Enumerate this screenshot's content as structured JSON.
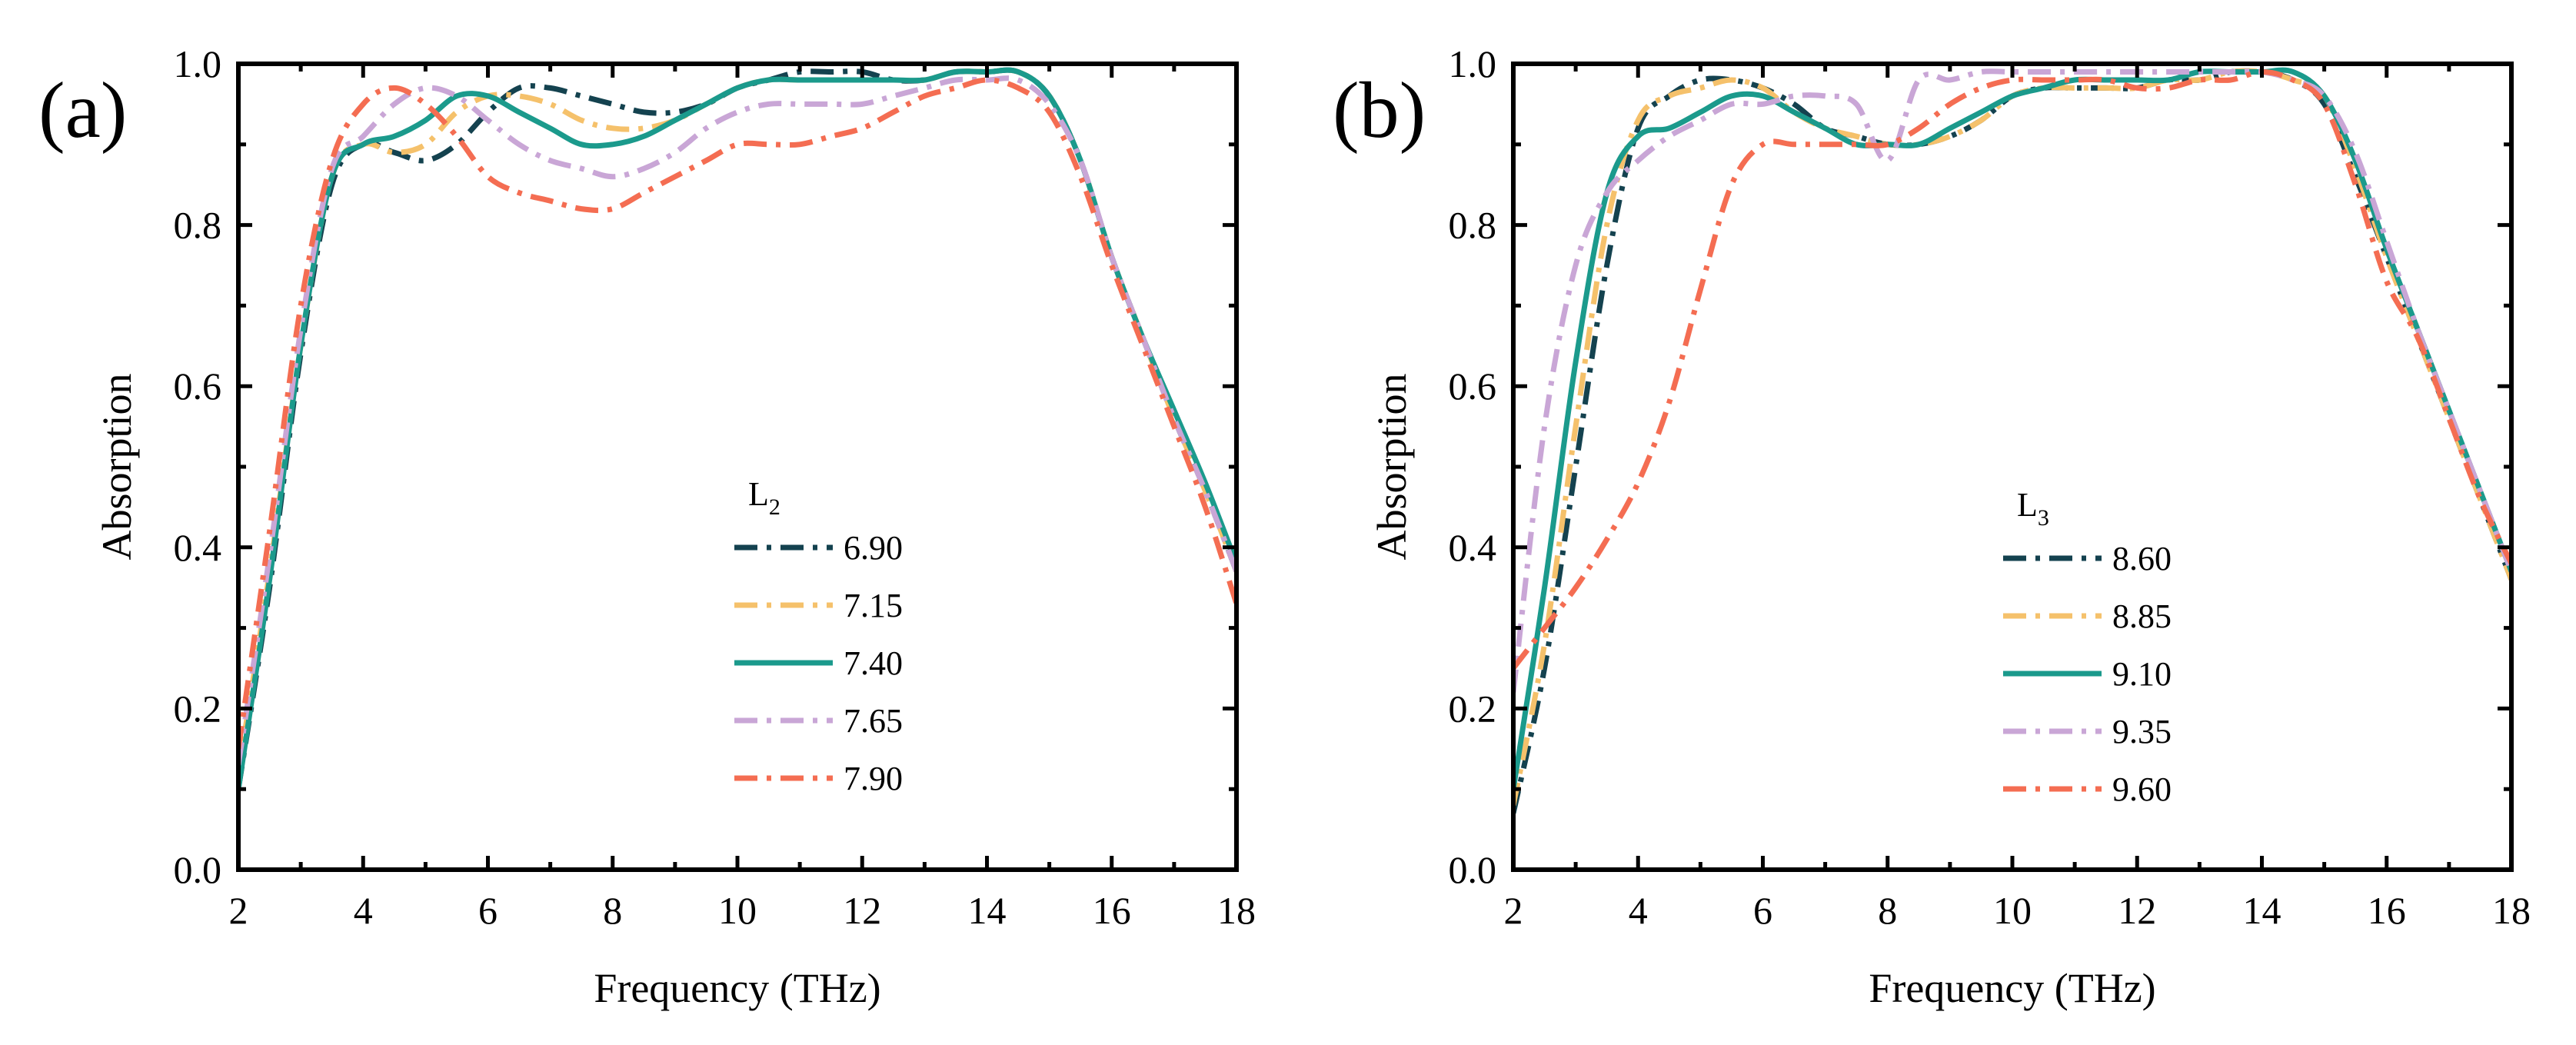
{
  "chart_data": [
    {
      "panel_label": "(a)",
      "type": "line",
      "xlabel": "Frequency (THz)",
      "ylabel": "Absorption",
      "xlim": [
        2,
        18
      ],
      "ylim": [
        0,
        1
      ],
      "xticks": [
        "2",
        "4",
        "6",
        "8",
        "10",
        "12",
        "14",
        "16",
        "18"
      ],
      "yticks": [
        "0.0",
        "0.2",
        "0.4",
        "0.6",
        "0.8",
        "1.0"
      ],
      "grid": false,
      "legend_title": {
        "main": "L",
        "sub": "2"
      },
      "legend_position": "center-right",
      "series": [
        {
          "name": "6.90",
          "color": "#14424f",
          "dash": "dashdot",
          "x": [
            2,
            2.5,
            3,
            3.5,
            4,
            4.5,
            5,
            5.5,
            6,
            6.5,
            7,
            7.5,
            8,
            8.5,
            9,
            9.5,
            10,
            10.5,
            11,
            11.5,
            12,
            12.5,
            13,
            13.5,
            14,
            14.5,
            15,
            15.5,
            16,
            16.5,
            17,
            17.5,
            18
          ],
          "y": [
            0.1,
            0.35,
            0.64,
            0.85,
            0.9,
            0.89,
            0.88,
            0.9,
            0.94,
            0.97,
            0.97,
            0.96,
            0.95,
            0.94,
            0.94,
            0.95,
            0.97,
            0.98,
            0.99,
            0.99,
            0.99,
            0.98,
            0.98,
            0.99,
            0.99,
            0.99,
            0.96,
            0.88,
            0.76,
            0.66,
            0.56,
            0.47,
            0.37
          ]
        },
        {
          "name": "7.15",
          "color": "#f5c16b",
          "dash": "dashdot",
          "x": [
            2,
            2.5,
            3,
            3.5,
            4,
            4.5,
            5,
            5.5,
            6,
            6.5,
            7,
            7.5,
            8,
            8.5,
            9,
            9.5,
            10,
            10.5,
            11,
            11.5,
            12,
            12.5,
            13,
            13.5,
            14,
            14.5,
            15,
            15.5,
            16,
            16.5,
            17,
            17.5,
            18
          ],
          "y": [
            0.12,
            0.37,
            0.65,
            0.86,
            0.9,
            0.89,
            0.9,
            0.94,
            0.96,
            0.96,
            0.95,
            0.93,
            0.92,
            0.92,
            0.93,
            0.95,
            0.97,
            0.98,
            0.98,
            0.98,
            0.98,
            0.98,
            0.98,
            0.99,
            0.99,
            0.99,
            0.96,
            0.88,
            0.76,
            0.66,
            0.56,
            0.47,
            0.37
          ]
        },
        {
          "name": "7.40",
          "color": "#1b9a8c",
          "dash": "solid",
          "x": [
            2,
            2.5,
            3,
            3.5,
            4,
            4.5,
            5,
            5.5,
            6,
            6.5,
            7,
            7.5,
            8,
            8.5,
            9,
            9.5,
            10,
            10.5,
            11,
            11.5,
            12,
            12.5,
            13,
            13.5,
            14,
            14.5,
            15,
            15.5,
            16,
            16.5,
            17,
            17.5,
            18
          ],
          "y": [
            0.1,
            0.36,
            0.65,
            0.86,
            0.9,
            0.91,
            0.93,
            0.96,
            0.96,
            0.94,
            0.92,
            0.9,
            0.9,
            0.91,
            0.93,
            0.95,
            0.97,
            0.98,
            0.98,
            0.98,
            0.98,
            0.98,
            0.98,
            0.99,
            0.99,
            0.99,
            0.96,
            0.88,
            0.76,
            0.66,
            0.57,
            0.48,
            0.38
          ]
        },
        {
          "name": "7.65",
          "color": "#c9a6d6",
          "dash": "dashdot",
          "x": [
            2,
            2.5,
            3,
            3.5,
            4,
            4.5,
            5,
            5.5,
            6,
            6.5,
            7,
            7.5,
            8,
            8.5,
            9,
            9.5,
            10,
            10.5,
            11,
            11.5,
            12,
            12.5,
            13,
            13.5,
            14,
            14.5,
            15,
            15.5,
            16,
            16.5,
            17,
            17.5,
            18
          ],
          "y": [
            0.13,
            0.39,
            0.67,
            0.87,
            0.91,
            0.95,
            0.97,
            0.96,
            0.93,
            0.9,
            0.88,
            0.87,
            0.86,
            0.87,
            0.89,
            0.92,
            0.94,
            0.95,
            0.95,
            0.95,
            0.95,
            0.96,
            0.97,
            0.98,
            0.98,
            0.98,
            0.95,
            0.88,
            0.76,
            0.66,
            0.56,
            0.47,
            0.37
          ]
        },
        {
          "name": "7.90",
          "color": "#f46d52",
          "dash": "dashdot",
          "x": [
            2,
            2.5,
            3,
            3.5,
            4,
            4.5,
            5,
            5.5,
            6,
            6.5,
            7,
            7.5,
            8,
            8.5,
            9,
            9.5,
            10,
            10.5,
            11,
            11.5,
            12,
            12.5,
            13,
            13.5,
            14,
            14.5,
            15,
            15.5,
            16,
            16.5,
            17,
            17.5,
            18
          ],
          "y": [
            0.15,
            0.42,
            0.7,
            0.88,
            0.95,
            0.97,
            0.95,
            0.91,
            0.86,
            0.84,
            0.83,
            0.82,
            0.82,
            0.84,
            0.86,
            0.88,
            0.9,
            0.9,
            0.9,
            0.91,
            0.92,
            0.94,
            0.96,
            0.97,
            0.98,
            0.97,
            0.94,
            0.86,
            0.75,
            0.65,
            0.55,
            0.45,
            0.33
          ]
        }
      ]
    },
    {
      "panel_label": "(b)",
      "type": "line",
      "xlabel": "Frequency (THz)",
      "ylabel": "Absorption",
      "xlim": [
        2,
        18
      ],
      "ylim": [
        0,
        1
      ],
      "xticks": [
        "2",
        "4",
        "6",
        "8",
        "10",
        "12",
        "14",
        "16",
        "18"
      ],
      "yticks": [
        "0.0",
        "0.2",
        "0.4",
        "0.6",
        "0.8",
        "1.0"
      ],
      "grid": false,
      "legend_title": {
        "main": "L",
        "sub": "3"
      },
      "legend_position": "center-right",
      "series": [
        {
          "name": "8.60",
          "color": "#14424f",
          "dash": "dashdot",
          "x": [
            2,
            2.5,
            3,
            3.5,
            4,
            4.5,
            5,
            5.5,
            6,
            6.5,
            7,
            7.5,
            8,
            8.5,
            9,
            9.5,
            10,
            10.5,
            11,
            11.5,
            12,
            12.5,
            13,
            13.5,
            14,
            14.5,
            15,
            15.5,
            16,
            16.5,
            17,
            17.5,
            18
          ],
          "y": [
            0.07,
            0.25,
            0.5,
            0.75,
            0.92,
            0.96,
            0.98,
            0.98,
            0.97,
            0.95,
            0.92,
            0.91,
            0.9,
            0.9,
            0.91,
            0.93,
            0.96,
            0.97,
            0.97,
            0.97,
            0.97,
            0.98,
            0.98,
            0.99,
            0.99,
            0.98,
            0.95,
            0.86,
            0.76,
            0.66,
            0.56,
            0.46,
            0.36
          ]
        },
        {
          "name": "8.85",
          "color": "#f5c16b",
          "dash": "dashdot",
          "x": [
            2,
            2.5,
            3,
            3.5,
            4,
            4.5,
            5,
            5.5,
            6,
            6.5,
            7,
            7.5,
            8,
            8.5,
            9,
            9.5,
            10,
            10.5,
            11,
            11.5,
            12,
            12.5,
            13,
            13.5,
            14,
            14.5,
            15,
            15.5,
            16,
            16.5,
            17,
            17.5,
            18
          ],
          "y": [
            0.08,
            0.28,
            0.55,
            0.8,
            0.93,
            0.96,
            0.97,
            0.98,
            0.97,
            0.94,
            0.92,
            0.91,
            0.9,
            0.9,
            0.91,
            0.93,
            0.96,
            0.97,
            0.97,
            0.97,
            0.97,
            0.98,
            0.98,
            0.99,
            0.99,
            0.98,
            0.96,
            0.87,
            0.76,
            0.66,
            0.56,
            0.46,
            0.36
          ]
        },
        {
          "name": "9.10",
          "color": "#1b9a8c",
          "dash": "solid",
          "x": [
            2,
            2.5,
            3,
            3.5,
            4,
            4.5,
            5,
            5.5,
            6,
            6.5,
            7,
            7.5,
            8,
            8.5,
            9,
            9.5,
            10,
            10.5,
            11,
            11.5,
            12,
            12.5,
            13,
            13.5,
            14,
            14.5,
            15,
            15.5,
            16,
            16.5,
            17,
            17.5,
            18
          ],
          "y": [
            0.1,
            0.35,
            0.63,
            0.84,
            0.91,
            0.92,
            0.94,
            0.96,
            0.96,
            0.94,
            0.92,
            0.9,
            0.9,
            0.9,
            0.92,
            0.94,
            0.96,
            0.97,
            0.98,
            0.98,
            0.98,
            0.98,
            0.99,
            0.99,
            0.99,
            0.99,
            0.96,
            0.88,
            0.77,
            0.67,
            0.57,
            0.47,
            0.37
          ]
        },
        {
          "name": "9.35",
          "color": "#c9a6d6",
          "dash": "dashdot",
          "x": [
            2,
            2.5,
            3,
            3.5,
            4,
            4.5,
            5,
            5.5,
            6,
            6.5,
            7,
            7.5,
            8,
            8.5,
            9,
            9.5,
            10,
            10.5,
            11,
            11.5,
            12,
            12.5,
            13,
            13.5,
            14,
            14.5,
            15,
            15.5,
            16,
            16.5,
            17,
            17.5,
            18
          ],
          "y": [
            0.22,
            0.55,
            0.75,
            0.84,
            0.88,
            0.91,
            0.93,
            0.95,
            0.95,
            0.96,
            0.96,
            0.95,
            0.88,
            0.98,
            0.98,
            0.99,
            0.99,
            0.99,
            0.99,
            0.99,
            0.99,
            0.99,
            0.99,
            0.99,
            0.99,
            0.98,
            0.96,
            0.89,
            0.78,
            0.67,
            0.57,
            0.47,
            0.37
          ]
        },
        {
          "name": "9.60",
          "color": "#f46d52",
          "dash": "dashdot",
          "x": [
            2,
            2.5,
            3,
            3.5,
            4,
            4.5,
            5,
            5.5,
            6,
            6.5,
            7,
            7.5,
            8,
            8.5,
            9,
            9.5,
            10,
            10.5,
            11,
            11.5,
            12,
            12.5,
            13,
            13.5,
            14,
            14.5,
            15,
            15.5,
            16,
            16.5,
            17,
            17.5,
            18
          ],
          "y": [
            0.25,
            0.3,
            0.35,
            0.41,
            0.48,
            0.58,
            0.72,
            0.85,
            0.9,
            0.9,
            0.9,
            0.9,
            0.9,
            0.92,
            0.95,
            0.97,
            0.98,
            0.98,
            0.98,
            0.98,
            0.97,
            0.97,
            0.98,
            0.98,
            0.99,
            0.98,
            0.95,
            0.85,
            0.73,
            0.66,
            0.56,
            0.46,
            0.38
          ]
        }
      ]
    }
  ]
}
